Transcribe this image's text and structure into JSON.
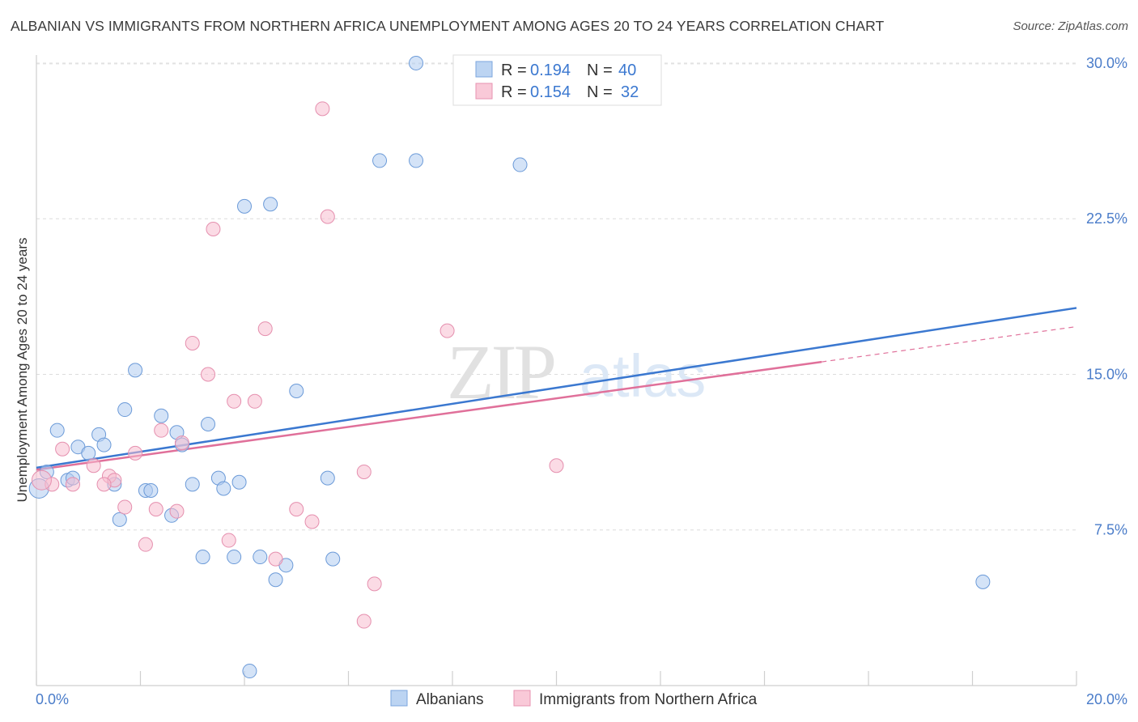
{
  "title": "ALBANIAN VS IMMIGRANTS FROM NORTHERN AFRICA UNEMPLOYMENT AMONG AGES 20 TO 24 YEARS CORRELATION CHART",
  "source": "Source: ZipAtlas.com",
  "watermark": {
    "zip": "ZIP",
    "atlas": "atlas"
  },
  "legend": {
    "r_label": "R =",
    "n_label": "N =",
    "series": [
      {
        "r": "0.194",
        "n": "40"
      },
      {
        "r": "0.154",
        "n": "32"
      }
    ]
  },
  "chart_data": {
    "type": "scatter",
    "title": "ALBANIAN VS IMMIGRANTS FROM NORTHERN AFRICA UNEMPLOYMENT AMONG AGES 20 TO 24 YEARS CORRELATION CHART",
    "xlabel": "",
    "ylabel": "Unemployment Among Ages 20 to 24 years",
    "xlim": [
      0,
      20
    ],
    "ylim": [
      0,
      30.7
    ],
    "x_tick_labels": [
      "0.0%",
      "20.0%"
    ],
    "y_tick_labels": [
      "7.5%",
      "15.0%",
      "22.5%",
      "30.0%"
    ],
    "y_ticks": [
      7.5,
      15.0,
      22.5,
      30.0
    ],
    "grid": true,
    "legend_placement": "top-center",
    "colors": {
      "albanians": "#3b78d0",
      "immigrants": "#e0709a"
    },
    "series": [
      {
        "name": "Albanians",
        "r": 0.194,
        "n": 40,
        "trend": {
          "x": [
            0,
            20
          ],
          "y": [
            10.5,
            18.2
          ]
        },
        "points": [
          [
            7.3,
            30.0
          ],
          [
            6.6,
            25.3
          ],
          [
            7.3,
            25.3
          ],
          [
            9.3,
            25.1
          ],
          [
            4.0,
            23.1
          ],
          [
            4.5,
            23.2
          ],
          [
            1.9,
            15.2
          ],
          [
            5.0,
            14.2
          ],
          [
            1.7,
            13.3
          ],
          [
            2.4,
            13.0
          ],
          [
            0.4,
            12.3
          ],
          [
            3.3,
            12.6
          ],
          [
            1.2,
            12.1
          ],
          [
            2.7,
            12.2
          ],
          [
            0.8,
            11.5
          ],
          [
            1.3,
            11.6
          ],
          [
            1.0,
            11.2
          ],
          [
            2.8,
            11.6
          ],
          [
            0.2,
            10.3
          ],
          [
            0.6,
            9.9
          ],
          [
            0.7,
            10.0
          ],
          [
            1.5,
            9.7
          ],
          [
            3.0,
            9.7
          ],
          [
            3.5,
            10.0
          ],
          [
            3.9,
            9.8
          ],
          [
            5.6,
            10.0
          ],
          [
            2.1,
            9.4
          ],
          [
            2.2,
            9.4
          ],
          [
            3.6,
            9.5
          ],
          [
            1.6,
            8.0
          ],
          [
            2.6,
            8.2
          ],
          [
            0.05,
            9.5
          ],
          [
            3.2,
            6.2
          ],
          [
            3.8,
            6.2
          ],
          [
            4.3,
            6.2
          ],
          [
            4.8,
            5.8
          ],
          [
            5.7,
            6.1
          ],
          [
            4.6,
            5.1
          ],
          [
            18.2,
            5.0
          ],
          [
            4.1,
            0.7
          ]
        ]
      },
      {
        "name": "Immigrants from Northern Africa",
        "r": 0.154,
        "n": 32,
        "trend": {
          "x": [
            0,
            15.1
          ],
          "y": [
            10.4,
            15.6
          ]
        },
        "trend_dashed": {
          "x": [
            15.1,
            20
          ],
          "y": [
            15.6,
            17.3
          ]
        },
        "points": [
          [
            5.5,
            27.8
          ],
          [
            5.6,
            22.6
          ],
          [
            3.4,
            22.0
          ],
          [
            4.4,
            17.2
          ],
          [
            7.9,
            17.1
          ],
          [
            3.0,
            16.5
          ],
          [
            3.3,
            15.0
          ],
          [
            3.8,
            13.7
          ],
          [
            4.2,
            13.7
          ],
          [
            2.4,
            12.3
          ],
          [
            0.5,
            11.4
          ],
          [
            1.9,
            11.2
          ],
          [
            2.8,
            11.7
          ],
          [
            1.1,
            10.6
          ],
          [
            6.3,
            10.3
          ],
          [
            10.0,
            10.6
          ],
          [
            1.4,
            10.1
          ],
          [
            0.3,
            9.7
          ],
          [
            0.7,
            9.7
          ],
          [
            1.5,
            9.9
          ],
          [
            1.3,
            9.7
          ],
          [
            1.7,
            8.6
          ],
          [
            2.3,
            8.5
          ],
          [
            2.7,
            8.4
          ],
          [
            5.0,
            8.5
          ],
          [
            5.3,
            7.9
          ],
          [
            3.7,
            7.0
          ],
          [
            2.1,
            6.8
          ],
          [
            4.6,
            6.1
          ],
          [
            6.5,
            4.9
          ],
          [
            6.3,
            3.1
          ],
          [
            0.1,
            9.9
          ]
        ]
      }
    ]
  },
  "bottom_legend": [
    {
      "label": "Albanians"
    },
    {
      "label": "Immigrants from Northern Africa"
    }
  ]
}
